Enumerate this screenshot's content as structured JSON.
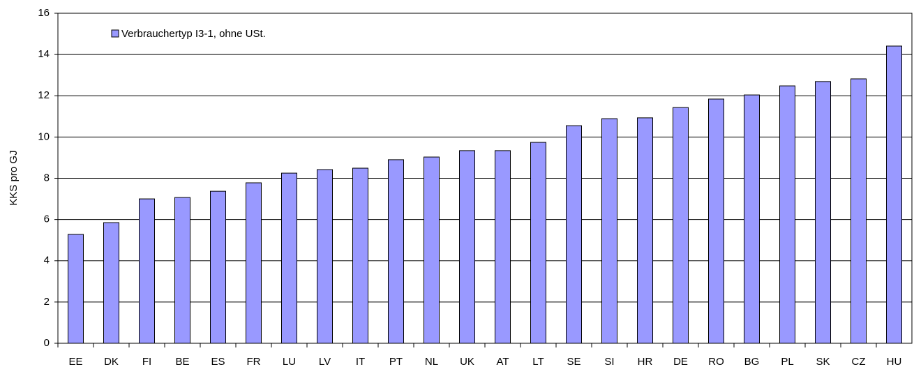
{
  "chart_data": {
    "type": "bar",
    "y_label": "KKS pro GJ",
    "legend": "Verbrauchertyp I3-1, ohne USt.",
    "categories": [
      "EE",
      "DK",
      "FI",
      "BE",
      "ES",
      "FR",
      "LU",
      "LV",
      "IT",
      "PT",
      "NL",
      "UK",
      "AT",
      "LT",
      "SE",
      "SI",
      "HR",
      "DE",
      "RO",
      "BG",
      "PL",
      "SK",
      "CZ",
      "HU"
    ],
    "values": [
      5.28,
      5.85,
      7.0,
      7.07,
      7.37,
      7.78,
      8.25,
      8.42,
      8.49,
      8.9,
      9.03,
      9.34,
      9.34,
      9.74,
      10.55,
      10.89,
      10.93,
      11.43,
      11.84,
      12.04,
      12.48,
      12.69,
      12.82,
      14.41
    ],
    "color": "#9999ff",
    "ylim": [
      0,
      16
    ],
    "yticks": [
      0,
      2,
      4,
      6,
      8,
      10,
      12,
      14,
      16
    ],
    "grid": true
  }
}
